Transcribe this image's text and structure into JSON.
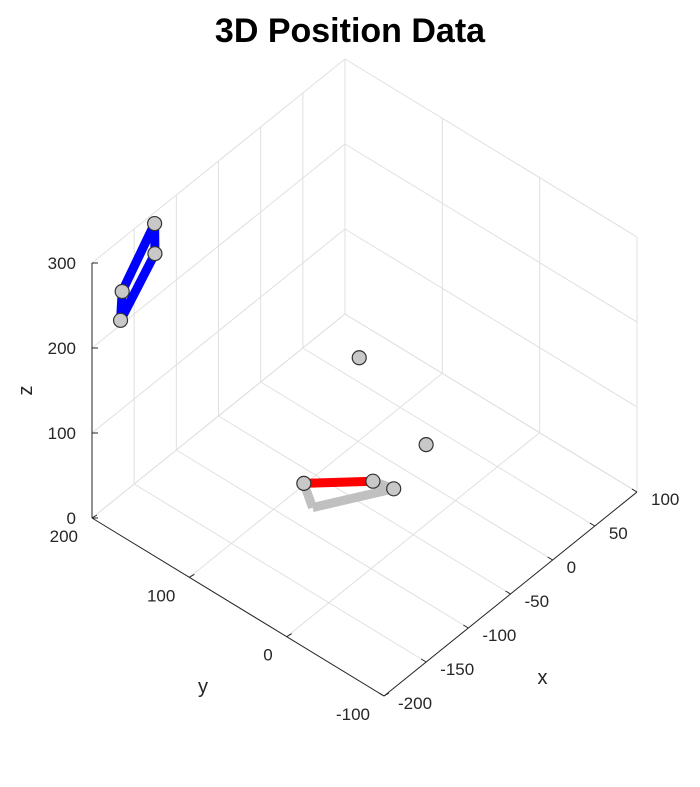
{
  "chart_data": {
    "type": "scatter3d",
    "title": "3D Position Data",
    "xlabel": "x",
    "ylabel": "y",
    "zlabel": "z",
    "xlim": [
      -200,
      100
    ],
    "ylim": [
      -100,
      200
    ],
    "zlim": [
      0,
      300
    ],
    "x_ticks": [
      "-200",
      "-150",
      "-100",
      "-50",
      "0",
      "50",
      "100"
    ],
    "y_ticks": [
      "-100",
      "0",
      "100",
      "200"
    ],
    "z_ticks": [
      "0",
      "100",
      "200",
      "300"
    ],
    "grid": true,
    "points": [
      {
        "x": -135,
        "y": 192,
        "z": 300
      },
      {
        "x": -160,
        "y": 170,
        "z": 300
      },
      {
        "x": -170,
        "y": 195,
        "z": 246
      },
      {
        "x": -195,
        "y": 175,
        "z": 246
      },
      {
        "x": -2,
        "y": 97,
        "z": 102
      },
      {
        "x": 0,
        "y": 30,
        "z": 45
      },
      {
        "x": -40,
        "y": 50,
        "z": 20
      },
      {
        "x": -50,
        "y": 20,
        "z": 40
      },
      {
        "x": -70,
        "y": 95,
        "z": 10
      }
    ],
    "segments": [
      {
        "color": "#0000ff",
        "from": [
          -135,
          192,
          300
        ],
        "to": [
          -160,
          170,
          300
        ]
      },
      {
        "color": "#0000ff",
        "from": [
          -160,
          170,
          300
        ],
        "to": [
          -195,
          175,
          246
        ]
      },
      {
        "color": "#0000ff",
        "from": [
          -195,
          175,
          246
        ],
        "to": [
          -170,
          195,
          246
        ]
      },
      {
        "color": "#0000ff",
        "from": [
          -135,
          192,
          300
        ],
        "to": [
          -170,
          195,
          246
        ]
      },
      {
        "color": "#ff0000",
        "from": [
          -40,
          50,
          20
        ],
        "to": [
          -70,
          95,
          10
        ]
      },
      {
        "color": "#c0c0c0",
        "from": [
          -40,
          50,
          20
        ],
        "to": [
          -50,
          20,
          40
        ]
      },
      {
        "color": "#c0c0c0",
        "from": [
          -50,
          20,
          40
        ],
        "to": [
          -100,
          60,
          30
        ]
      },
      {
        "color": "#c0c0c0",
        "from": [
          -100,
          60,
          30
        ],
        "to": [
          -70,
          95,
          10
        ]
      }
    ],
    "colors": {
      "blue": "#0000ff",
      "red": "#ff0000",
      "gray": "#c0c0c0",
      "marker_fill": "#c8c8c8",
      "grid": "#e0e0e0"
    }
  }
}
